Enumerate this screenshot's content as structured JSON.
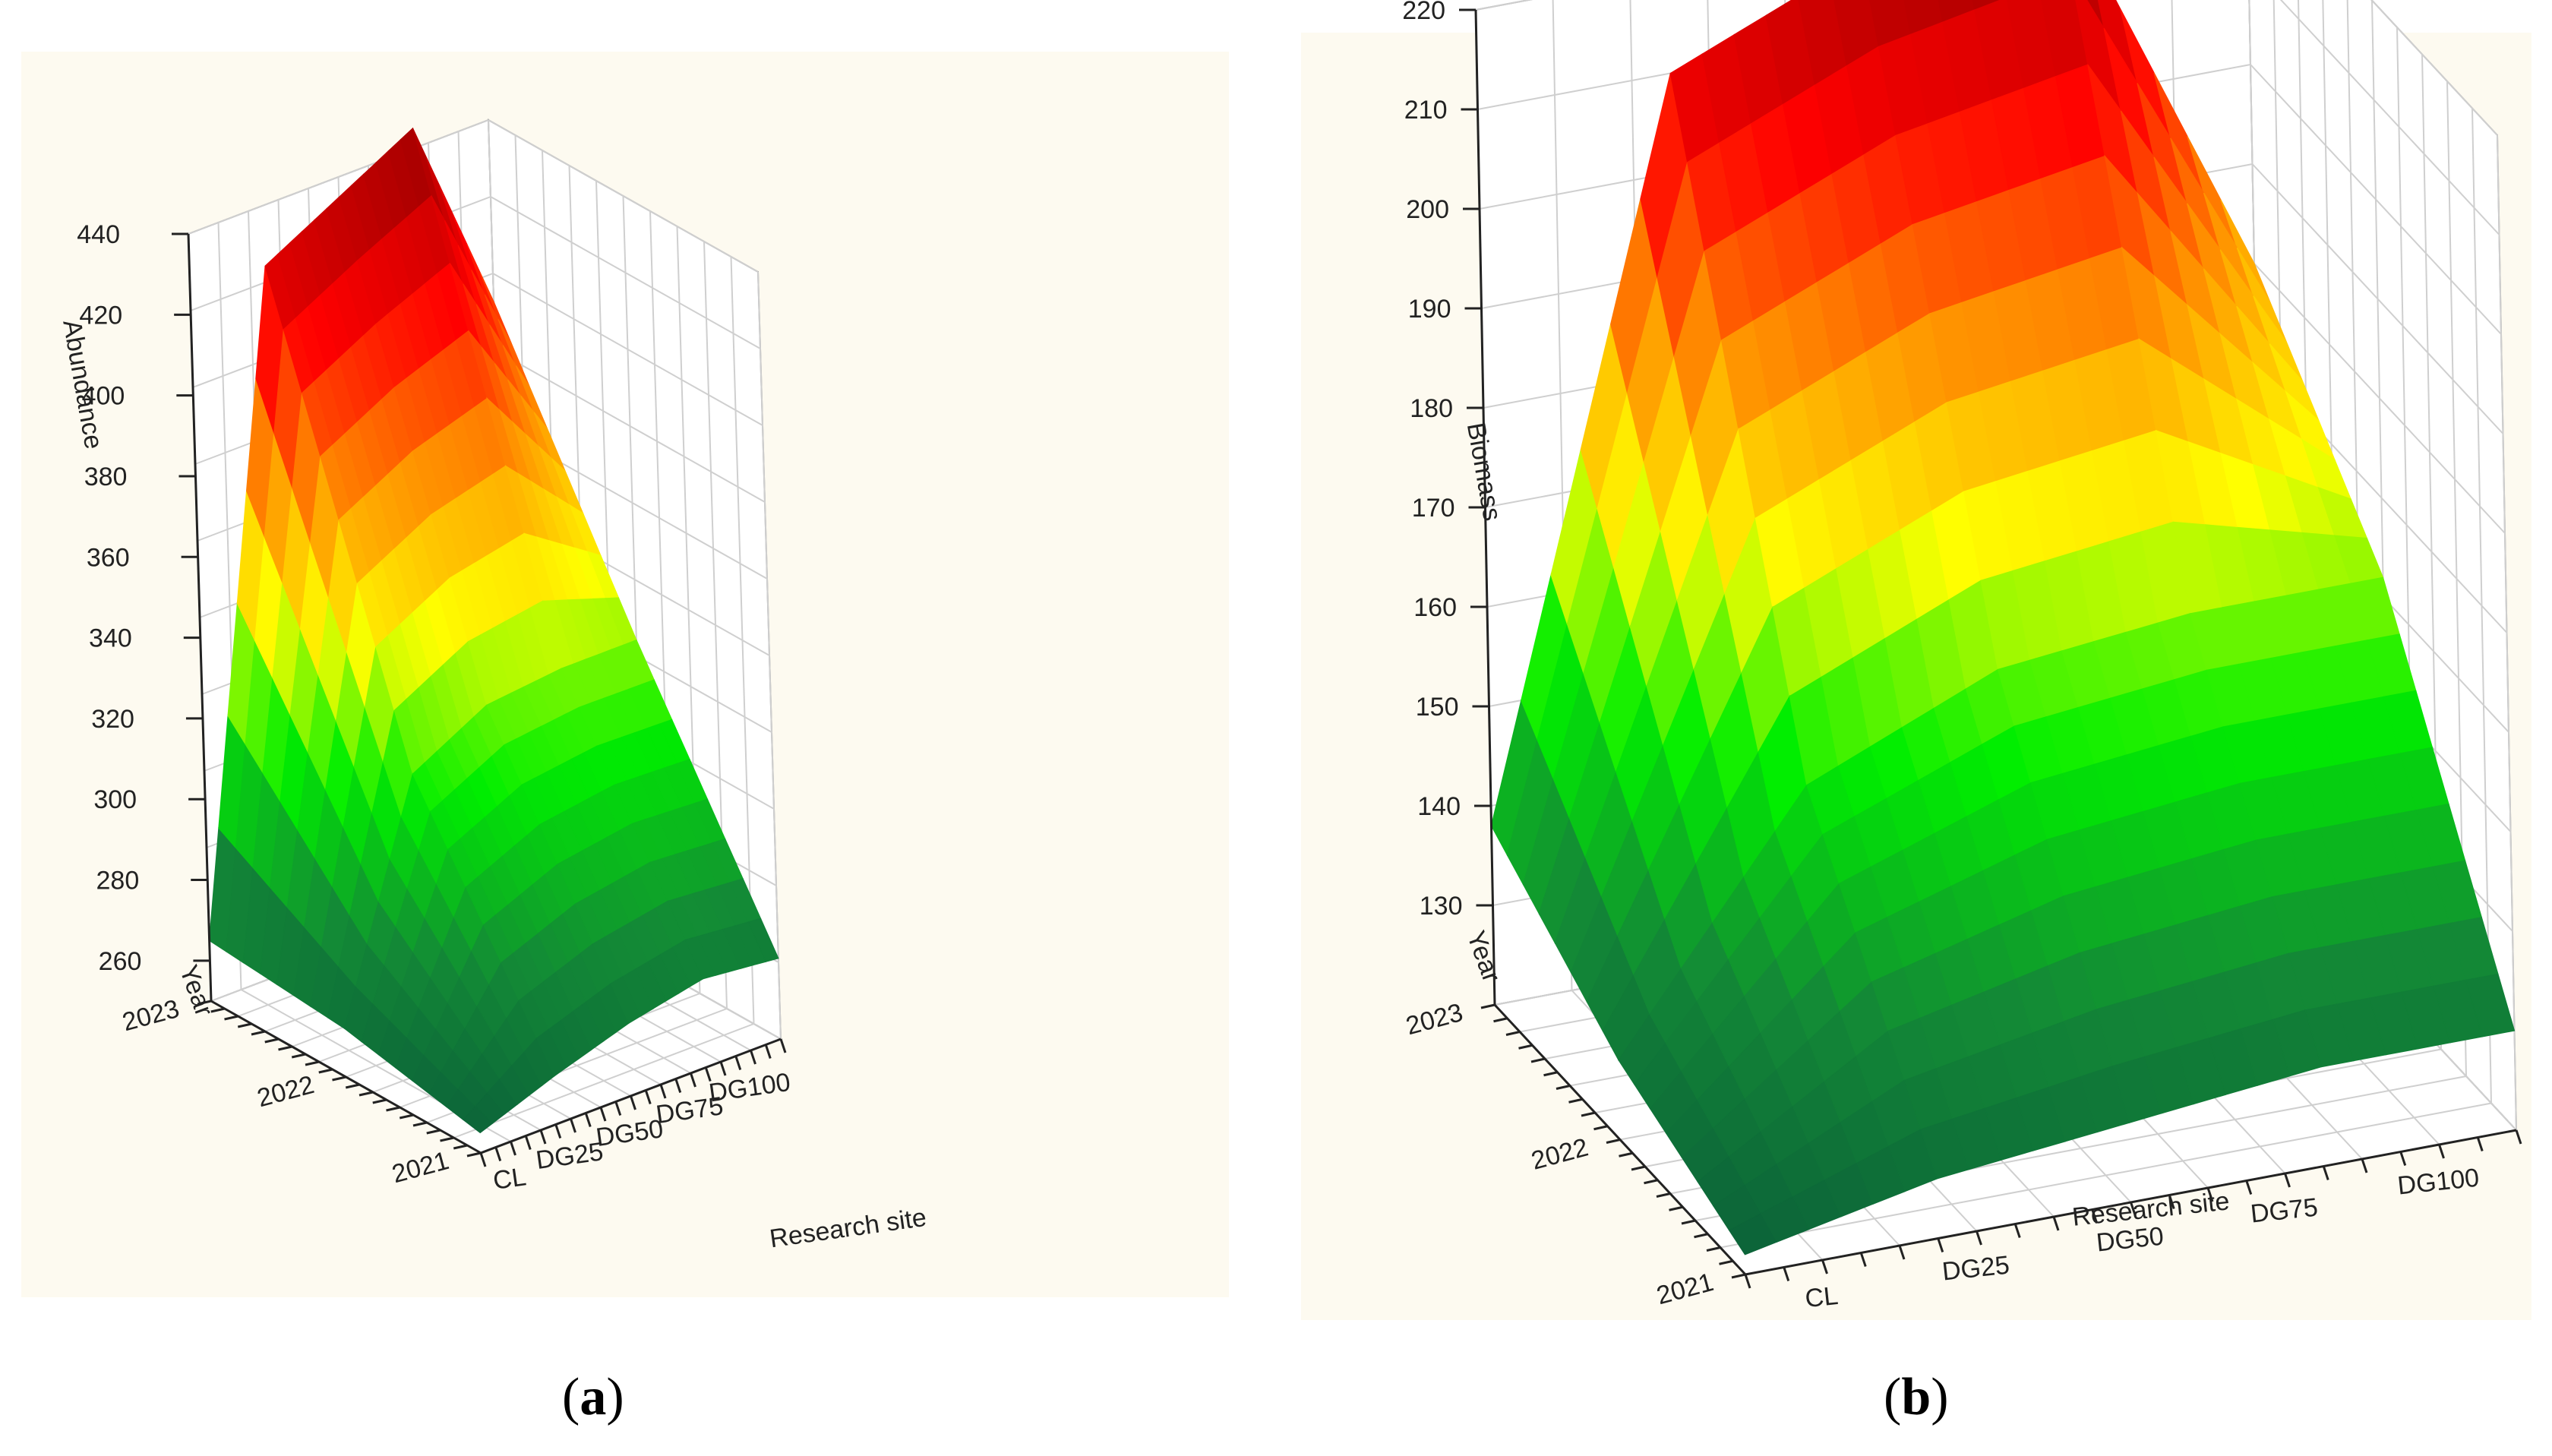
{
  "captions": {
    "a": "a",
    "b": "b"
  },
  "chart_data": [
    {
      "id": "a",
      "type": "surface3d",
      "title": "",
      "xlabel": "Research site",
      "ylabel": "Year",
      "zlabel": "Abundance",
      "sites": [
        "CL",
        "DG25",
        "DG50",
        "DG75",
        "DG100"
      ],
      "years": [
        "2021",
        "2022",
        "2023"
      ],
      "zlim": [
        250,
        440
      ],
      "zticks": [
        260,
        280,
        300,
        320,
        340,
        360,
        380,
        400,
        420,
        440
      ],
      "values": [
        [
          255,
          262,
          268,
          272,
          270
        ],
        [
          262,
          318,
          328,
          330,
          330
        ],
        [
          265,
          425,
          435,
          445,
          395
        ]
      ],
      "colormap": [
        "#0b5e3a",
        "#138a36",
        "#00ee00",
        "#ffff00",
        "#ff8c00",
        "#ff0000",
        "#a30000"
      ]
    },
    {
      "id": "b",
      "type": "surface3d",
      "title": "",
      "xlabel": "Research site",
      "ylabel": "Year",
      "zlabel": "Biomass",
      "sites": [
        "CL",
        "DG25",
        "DG50",
        "DG75",
        "DG100"
      ],
      "years": [
        "2021",
        "2022",
        "2023"
      ],
      "zlim": [
        120,
        220
      ],
      "zticks": [
        130,
        140,
        150,
        160,
        170,
        180,
        190,
        200,
        210,
        220
      ],
      "values": [
        [
          122,
          126,
          128,
          130,
          130
        ],
        [
          128,
          152,
          160,
          162,
          162
        ],
        [
          138,
          210,
          218,
          222,
          180
        ]
      ],
      "colormap": [
        "#0b5e3a",
        "#138a36",
        "#00ee00",
        "#ffff00",
        "#ff8c00",
        "#ff0000",
        "#a30000"
      ]
    }
  ]
}
